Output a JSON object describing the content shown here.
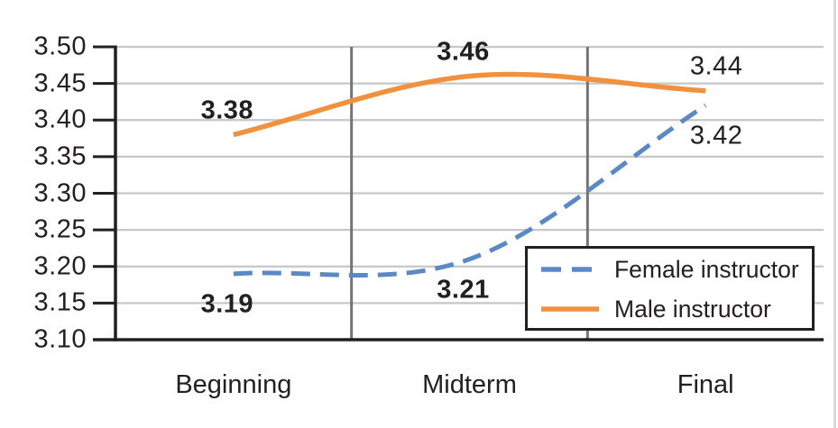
{
  "chart_data": {
    "type": "line",
    "title": "",
    "xlabel": "",
    "ylabel": "",
    "categories": [
      "Beginning",
      "Midterm",
      "Final"
    ],
    "series": [
      {
        "name": "Female instructor",
        "values": [
          3.19,
          3.21,
          3.42
        ],
        "color": "#5c88c5",
        "style": "dashed",
        "point_labels": [
          {
            "text": "3.19",
            "position": "below",
            "bold": true
          },
          {
            "text": "3.21",
            "position": "below",
            "bold": true
          },
          {
            "text": "3.42",
            "position": "below",
            "bold": false
          }
        ]
      },
      {
        "name": "Male instructor",
        "values": [
          3.38,
          3.46,
          3.44
        ],
        "color": "#f2913d",
        "style": "solid",
        "point_labels": [
          {
            "text": "3.38",
            "position": "above",
            "bold": true
          },
          {
            "text": "3.46",
            "position": "above",
            "bold": true
          },
          {
            "text": "3.44",
            "position": "above",
            "bold": false
          }
        ]
      }
    ],
    "ylim": [
      3.1,
      3.5
    ],
    "ytick_step": 0.05,
    "ytick_labels": [
      "3.50",
      "3.45",
      "3.40",
      "3.35",
      "3.30",
      "3.25",
      "3.20",
      "3.15",
      "3.10"
    ],
    "grid": {
      "horizontal": true,
      "vertical_between_categories": true
    },
    "legend": {
      "position": "bottom-right",
      "entries": [
        "Female instructor",
        "Male instructor"
      ]
    },
    "line_smoothing": true
  },
  "colors": {
    "axis": "#231f20",
    "text": "#231f20",
    "horizontal_gridline": "#c7c7c7",
    "vertical_gridline": "#747474",
    "page_edge": "#d8d8d8",
    "background": "#ffffff"
  }
}
